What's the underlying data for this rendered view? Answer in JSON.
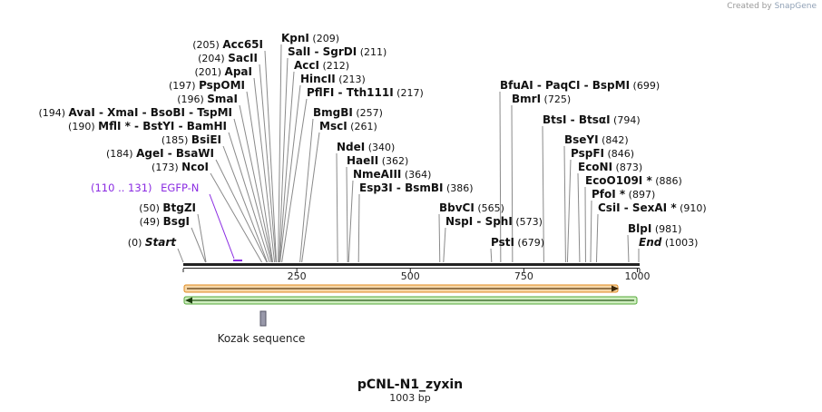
{
  "credit": {
    "prefix": "Created by",
    "brand": "SnapGene"
  },
  "title": "pCNL-N1_zyxin",
  "subtitle": "1003 bp",
  "colors": {
    "enzyme_line": "#888888",
    "feature": "#8a2be2",
    "orange_arrow": "#e08a1e",
    "green_arrow": "#55a83a",
    "backbone": "#222222"
  },
  "map": {
    "length": 1003,
    "axis_ticks": [
      {
        "pos": 250,
        "label": "250"
      },
      {
        "pos": 500,
        "label": "500"
      },
      {
        "pos": 750,
        "label": "750"
      },
      {
        "pos": 1000,
        "label": "1000"
      }
    ],
    "site_labels": [
      {
        "text": "(0)  ",
        "bold": "Start",
        "italic": true,
        "site": 0
      },
      {
        "text": "(49)  ",
        "bold": "BsgI",
        "site": 49
      },
      {
        "text": "(50)  ",
        "bold": "BtgZI",
        "site": 50
      },
      {
        "text": "(173)  ",
        "bold": "NcoI",
        "site": 173
      },
      {
        "text": "(184)  ",
        "bold": "AgeI  -  BsaWI",
        "site": 184
      },
      {
        "text": "(185)  ",
        "bold": "BsiEI",
        "site": 185
      },
      {
        "text": "(190)  ",
        "bold": "MflI * - BstYI  -  BamHI",
        "site": 190
      },
      {
        "text": "(194)  ",
        "bold": "AvaI  -  XmaI  -  BsoBI  -  TspMI",
        "site": 194
      },
      {
        "text": "(196)  ",
        "bold": "SmaI",
        "site": 196
      },
      {
        "text": "(197)  ",
        "bold": "PspOMI",
        "site": 197
      },
      {
        "text": "(201)  ",
        "bold": "ApaI",
        "site": 201
      },
      {
        "text": "(204)  ",
        "bold": "SacII",
        "site": 204
      },
      {
        "text": "(205)  ",
        "bold": "Acc65I",
        "site": 205
      },
      {
        "bold": "KpnI",
        "text": "  (209)",
        "site": 209
      },
      {
        "bold": "SalI  -  SgrDI",
        "text": "  (211)",
        "site": 211
      },
      {
        "bold": "AccI",
        "text": "  (212)",
        "site": 212
      },
      {
        "bold": "HincII",
        "text": "  (213)",
        "site": 213
      },
      {
        "bold": "PflFI  -  Tth111I",
        "text": "  (217)",
        "site": 217
      },
      {
        "bold": "BmgBI",
        "text": "  (257)",
        "site": 257
      },
      {
        "bold": "MscI",
        "text": "  (261)",
        "site": 261
      },
      {
        "bold": "NdeI",
        "text": "  (340)",
        "site": 340
      },
      {
        "bold": "HaeII",
        "text": "  (362)",
        "site": 362
      },
      {
        "bold": "NmeAIII",
        "text": "  (364)",
        "site": 364
      },
      {
        "bold": "Esp3I  -  BsmBI",
        "text": "  (386)",
        "site": 386
      },
      {
        "bold": "BbvCI",
        "text": "  (565)",
        "site": 565
      },
      {
        "bold": "NspI  -  SphI",
        "text": "  (573)",
        "site": 573
      },
      {
        "bold": "PstI",
        "text": "  (679)",
        "site": 679
      },
      {
        "bold": "BfuAI  -  PaqCI  -  BspMI",
        "text": "  (699)",
        "site": 699
      },
      {
        "bold": "BmrI",
        "text": "  (725)",
        "site": 725
      },
      {
        "bold": "BtsI  -  BtsαI",
        "text": "  (794)",
        "site": 794
      },
      {
        "bold": "BseYI",
        "text": "  (842)",
        "site": 842
      },
      {
        "bold": "PspFI",
        "text": "  (846)",
        "site": 846
      },
      {
        "bold": "EcoNI",
        "text": "  (873)",
        "site": 873
      },
      {
        "bold": "EcoO109I *",
        "text": "  (886)",
        "site": 886
      },
      {
        "bold": "PfoI *",
        "text": "  (897)",
        "site": 897
      },
      {
        "bold": "CsiI  -  SexAI *",
        "text": "  (910)",
        "site": 910
      },
      {
        "bold": "BlpI",
        "text": "  (981)",
        "site": 981
      },
      {
        "bold": "End",
        "text": "  (1003)",
        "italic": true,
        "site": 1003
      }
    ],
    "feature_egfp": {
      "range": "(110 .. 131)",
      "name": "EGFP-N",
      "start": 110,
      "end": 131
    },
    "kozak": {
      "label": "Kozak sequence",
      "start": 172,
      "end": 182
    },
    "orange_arrow": {
      "start": 1,
      "end": 960,
      "direction": "forward"
    },
    "green_arrow": {
      "start": 1,
      "end": 1003,
      "direction": "reverse"
    }
  }
}
